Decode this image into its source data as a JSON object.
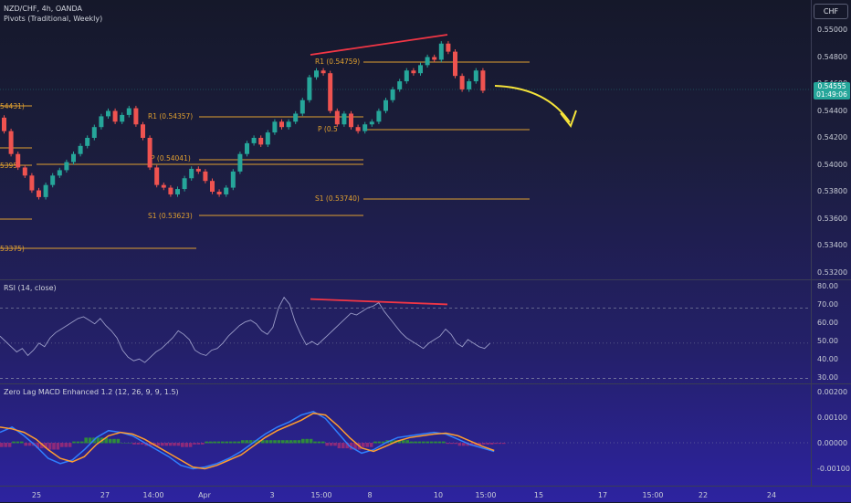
{
  "symbol_legend": "NZD/CHF, 4h, OANDA",
  "pivots_legend": "Pivots (Traditional, Weekly)",
  "currency_button": "CHF",
  "last_price": "0.54555",
  "countdown": "01:49:06",
  "price_scale": [
    "0.55000",
    "0.54800",
    "0.54600",
    "0.54400",
    "0.54200",
    "0.54000",
    "0.53800",
    "0.53600",
    "0.53400",
    "0.53200"
  ],
  "pivot_labels": {
    "edge_r1": "54431)",
    "edge_p": "5395",
    "edge_s1": "53375)",
    "w1_r1": "R1 (0.54357)",
    "w1_p": "P (0.54041)",
    "w1_s1": "S1 (0.53623)",
    "w2_r1": "R1 (0.54759)",
    "w2_p": "P (0.5",
    "w2_s1": "S1 (0.53740)"
  },
  "rsi": {
    "legend": "RSI (14, close)",
    "scale": [
      "80.00",
      "70.00",
      "60.00",
      "50.00",
      "40.00",
      "30.00"
    ]
  },
  "macd": {
    "legend": "Zero Lag MACD Enhanced 1.2 (12, 26, 9, 9, 1.5)",
    "scale": [
      "0.00200",
      "0.00100",
      "0.00000",
      "-0.00100"
    ]
  },
  "time_labels": [
    "25",
    "27",
    "14:00",
    "Apr",
    "3",
    "15:00",
    "8",
    "10",
    "15:00",
    "15",
    "17",
    "15:00",
    "22",
    "24"
  ],
  "colors": {
    "bull": "#26a69a",
    "bear": "#ef5350",
    "pivot": "#e0a030",
    "divergence": "#f23645",
    "arrow": "#f5e33a",
    "macd_line": "#2f7fff",
    "signal_line": "#ff9d2f",
    "hist_pos": "#2e8b3a",
    "hist_neg": "#8e2a7a"
  }
}
